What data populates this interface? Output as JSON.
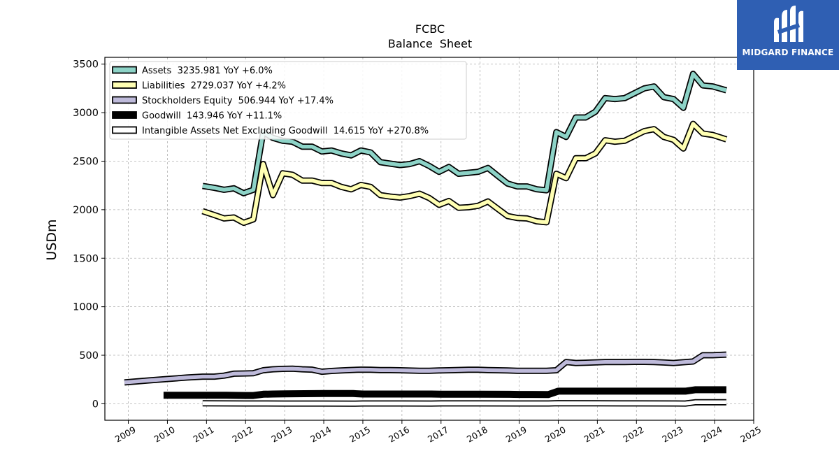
{
  "chart_data": {
    "type": "line",
    "title": "FCBC",
    "subtitle": "Balance  Sheet",
    "ylabel": "USDm",
    "xlabel": "",
    "xlim": [
      2008.4,
      2025.0
    ],
    "ylim": [
      -170,
      3570
    ],
    "x_ticks": [
      2009,
      2010,
      2011,
      2012,
      2013,
      2014,
      2015,
      2016,
      2017,
      2018,
      2019,
      2020,
      2021,
      2022,
      2023,
      2024,
      2025
    ],
    "y_ticks": [
      0,
      500,
      1000,
      1500,
      2000,
      2500,
      3000,
      3500
    ],
    "grid": true,
    "legend_position": "top-left",
    "series": [
      {
        "name": "Assets  3235.981 YoY +6.0%",
        "color": "#8dd3c7",
        "x": [
          2010.9,
          2011.2,
          2011.45,
          2011.7,
          2011.95,
          2012.2,
          2012.45,
          2012.7,
          2012.95,
          2013.2,
          2013.45,
          2013.7,
          2013.95,
          2014.2,
          2014.45,
          2014.7,
          2014.95,
          2015.2,
          2015.45,
          2015.7,
          2015.95,
          2016.2,
          2016.45,
          2016.7,
          2016.95,
          2017.2,
          2017.45,
          2017.7,
          2017.95,
          2018.2,
          2018.45,
          2018.7,
          2018.95,
          2019.2,
          2019.45,
          2019.7,
          2019.95,
          2020.2,
          2020.45,
          2020.7,
          2020.95,
          2021.2,
          2021.45,
          2021.7,
          2021.95,
          2022.2,
          2022.45,
          2022.7,
          2022.95,
          2023.2,
          2023.45,
          2023.7,
          2023.95,
          2024.3
        ],
        "values": [
          2245,
          2225,
          2205,
          2220,
          2170,
          2205,
          2800,
          2740,
          2710,
          2700,
          2650,
          2650,
          2600,
          2610,
          2580,
          2560,
          2610,
          2590,
          2490,
          2475,
          2460,
          2470,
          2500,
          2450,
          2390,
          2440,
          2370,
          2380,
          2390,
          2430,
          2350,
          2270,
          2240,
          2240,
          2210,
          2200,
          2800,
          2750,
          2950,
          2950,
          3010,
          3150,
          3140,
          3150,
          3200,
          3250,
          3270,
          3160,
          3140,
          3050,
          3400,
          3280,
          3270,
          3230
        ]
      },
      {
        "name": "Liabilities  2729.037 YoY +4.2%",
        "color": "#ffffb3",
        "x": [
          2010.9,
          2011.2,
          2011.45,
          2011.7,
          2011.95,
          2012.2,
          2012.45,
          2012.7,
          2012.95,
          2013.2,
          2013.45,
          2013.7,
          2013.95,
          2014.2,
          2014.45,
          2014.7,
          2014.95,
          2015.2,
          2015.45,
          2015.7,
          2015.95,
          2016.2,
          2016.45,
          2016.7,
          2016.95,
          2017.2,
          2017.45,
          2017.7,
          2017.95,
          2018.2,
          2018.45,
          2018.7,
          2018.95,
          2019.2,
          2019.45,
          2019.7,
          2019.95,
          2020.2,
          2020.45,
          2020.7,
          2020.95,
          2021.2,
          2021.45,
          2021.7,
          2021.95,
          2022.2,
          2022.45,
          2022.7,
          2022.95,
          2023.2,
          2023.45,
          2023.7,
          2023.95,
          2024.3
        ],
        "values": [
          1985,
          1945,
          1910,
          1920,
          1865,
          1900,
          2470,
          2150,
          2375,
          2360,
          2300,
          2300,
          2275,
          2275,
          2235,
          2210,
          2255,
          2235,
          2150,
          2135,
          2125,
          2140,
          2165,
          2120,
          2050,
          2090,
          2020,
          2025,
          2040,
          2085,
          2010,
          1935,
          1915,
          1910,
          1880,
          1870,
          2370,
          2325,
          2530,
          2530,
          2580,
          2715,
          2700,
          2710,
          2760,
          2810,
          2830,
          2750,
          2720,
          2630,
          2885,
          2785,
          2770,
          2725
        ]
      },
      {
        "name": "Stockholders Equity  506.944 YoY +17.4%",
        "color": "#bebada",
        "x": [
          2008.9,
          2009.5,
          2010.0,
          2010.5,
          2010.9,
          2011.2,
          2011.45,
          2011.7,
          2011.95,
          2012.2,
          2012.45,
          2012.7,
          2012.95,
          2013.2,
          2013.45,
          2013.7,
          2013.95,
          2014.2,
          2014.45,
          2014.7,
          2014.95,
          2015.2,
          2015.45,
          2015.7,
          2015.95,
          2016.2,
          2016.45,
          2016.7,
          2016.95,
          2017.2,
          2017.45,
          2017.7,
          2017.95,
          2018.2,
          2018.45,
          2018.7,
          2018.95,
          2019.2,
          2019.45,
          2019.7,
          2019.95,
          2020.2,
          2020.45,
          2020.7,
          2020.95,
          2021.2,
          2021.45,
          2021.7,
          2021.95,
          2022.2,
          2022.45,
          2022.7,
          2022.95,
          2023.2,
          2023.45,
          2023.7,
          2023.95,
          2024.3
        ],
        "values": [
          220,
          240,
          255,
          270,
          280,
          280,
          290,
          310,
          312,
          315,
          345,
          355,
          360,
          362,
          355,
          352,
          330,
          338,
          343,
          348,
          352,
          350,
          347,
          347,
          345,
          342,
          340,
          340,
          343,
          345,
          348,
          350,
          350,
          347,
          345,
          343,
          340,
          340,
          340,
          340,
          345,
          430,
          420,
          422,
          426,
          430,
          430,
          430,
          432,
          432,
          430,
          425,
          420,
          428,
          435,
          500,
          500,
          507
        ]
      },
      {
        "name": "Goodwill  143.946 YoY +11.1%",
        "color": "#000000",
        "x": [
          2009.9,
          2010.5,
          2011.0,
          2011.5,
          2012.0,
          2012.2,
          2012.45,
          2012.7,
          2013.0,
          2014.0,
          2014.75,
          2015.0,
          2016.0,
          2016.75,
          2017.0,
          2018.0,
          2018.75,
          2019.0,
          2019.75,
          2020.0,
          2021.0,
          2022.0,
          2023.0,
          2023.25,
          2023.5,
          2024.3
        ],
        "values": [
          88,
          88,
          88,
          87,
          85,
          85,
          98,
          100,
          102,
          105,
          105,
          100,
          100,
          100,
          98,
          98,
          97,
          96,
          95,
          130,
          130,
          130,
          130,
          130,
          144,
          144
        ]
      },
      {
        "name": "Intangible Assets Net Excluding Goodwill  14.615 YoY +270.8%",
        "color": "#ffffff",
        "x": [
          2010.9,
          2012.0,
          2013.0,
          2014.0,
          2014.75,
          2015.0,
          2016.0,
          2016.75,
          2017.0,
          2018.0,
          2019.0,
          2019.75,
          2020.0,
          2021.0,
          2022.0,
          2023.0,
          2023.25,
          2023.5,
          2024.3
        ],
        "values": [
          5,
          3,
          2,
          2,
          1,
          3,
          3,
          2,
          4,
          4,
          3,
          3,
          6,
          5,
          4,
          3,
          2,
          15,
          15
        ]
      }
    ]
  },
  "branding": {
    "company": "MIDGARD FINANCE",
    "logo_icon": "midgard-logo-icon",
    "logo_color": "#2f5fb3"
  }
}
